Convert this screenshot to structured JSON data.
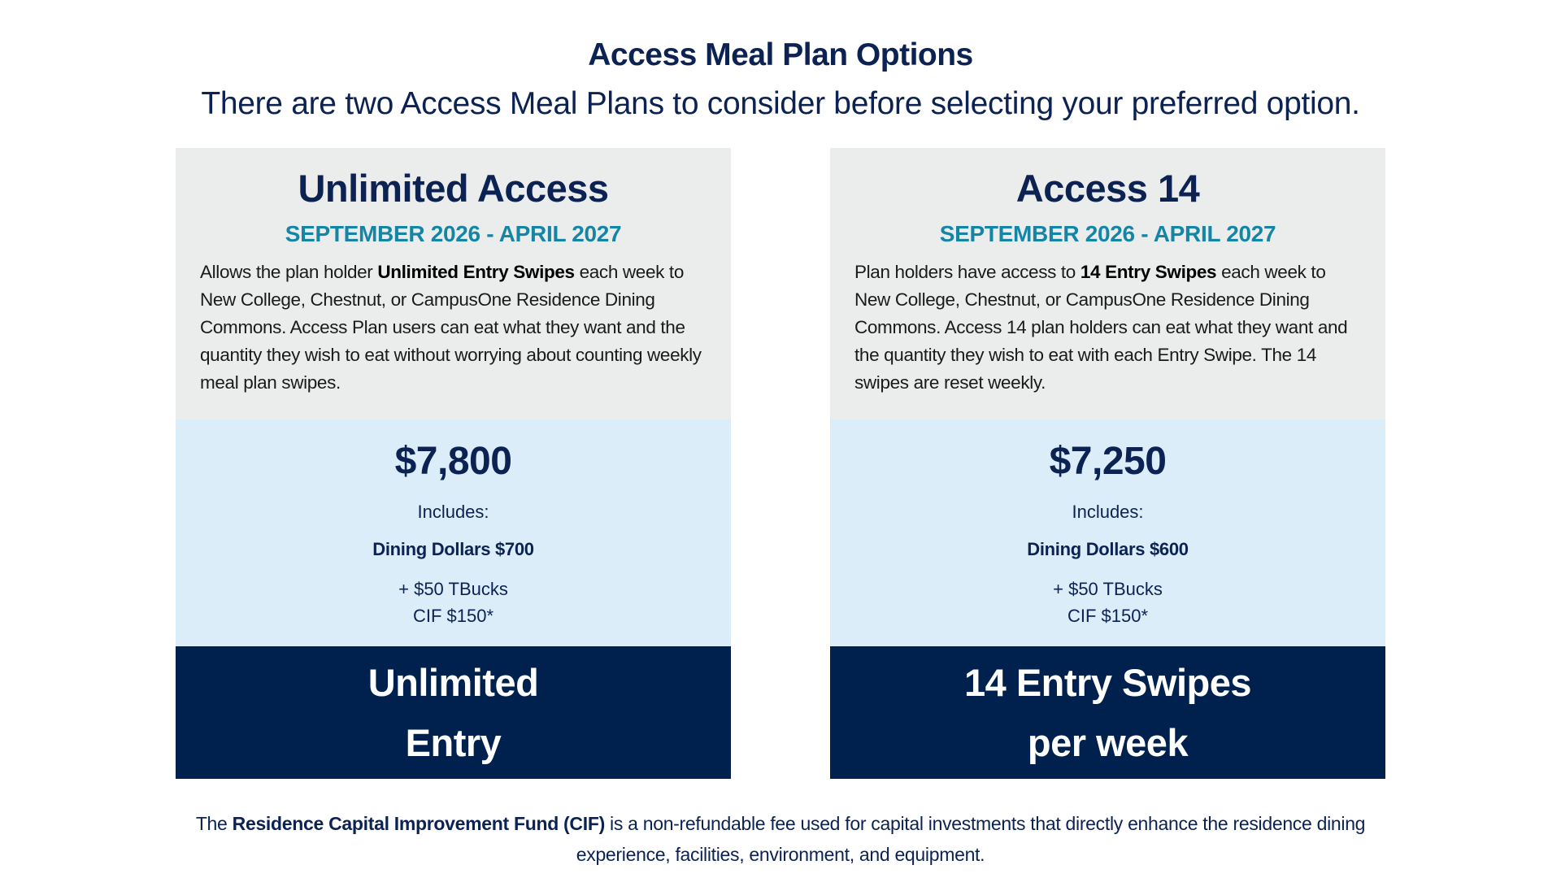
{
  "header": {
    "title": "Access Meal Plan Options",
    "subtitle": "There are two Access Meal Plans to consider before selecting your preferred option."
  },
  "colors": {
    "navy": "#00204E",
    "title_text": "#0B2252",
    "date_teal": "#1585A6",
    "card_gray": "#EBECEC",
    "card_light_blue": "#DAEDF8",
    "background": "#FFFFFF"
  },
  "plans": [
    {
      "name": "Unlimited Access",
      "dates": "SEPTEMBER 2026 - APRIL 2027",
      "description": {
        "before": "Allows the plan holder ",
        "bold": "Unlimited Entry Swipes",
        "after": " each week to New College, Chestnut, or CampusOne Residence Dining Commons. Access Plan users can eat what they want and the quantity they wish to eat without worrying about counting weekly meal plan swipes."
      },
      "price": "$7,800",
      "includes_label": "Includes:",
      "dining_dollars": "Dining Dollars $700",
      "tbucks": "+ $50 TBucks",
      "cif": "CIF $150*",
      "entry_line_1": "Unlimited",
      "entry_line_2": "Entry"
    },
    {
      "name": "Access 14",
      "dates": "SEPTEMBER 2026 - APRIL 2027",
      "description": {
        "before": "Plan holders have access to ",
        "bold": "14 Entry Swipes",
        "after": " each week to New College, Chestnut, or CampusOne Residence Dining Commons. Access 14 plan holders can eat what they want and the quantity they wish to eat with each Entry Swipe. The 14 swipes are reset weekly."
      },
      "price": "$7,250",
      "includes_label": "Includes:",
      "dining_dollars": "Dining Dollars $600",
      "tbucks": "+ $50 TBucks",
      "cif": "CIF $150*",
      "entry_line_1": "14 Entry Swipes",
      "entry_line_2": "per week"
    }
  ],
  "footnote": {
    "before": "The ",
    "bold": "Residence Capital Improvement Fund (CIF)",
    "after": " is a non-refundable fee used for capital investments that directly enhance the residence dining experience, facilities, environment, and equipment."
  }
}
